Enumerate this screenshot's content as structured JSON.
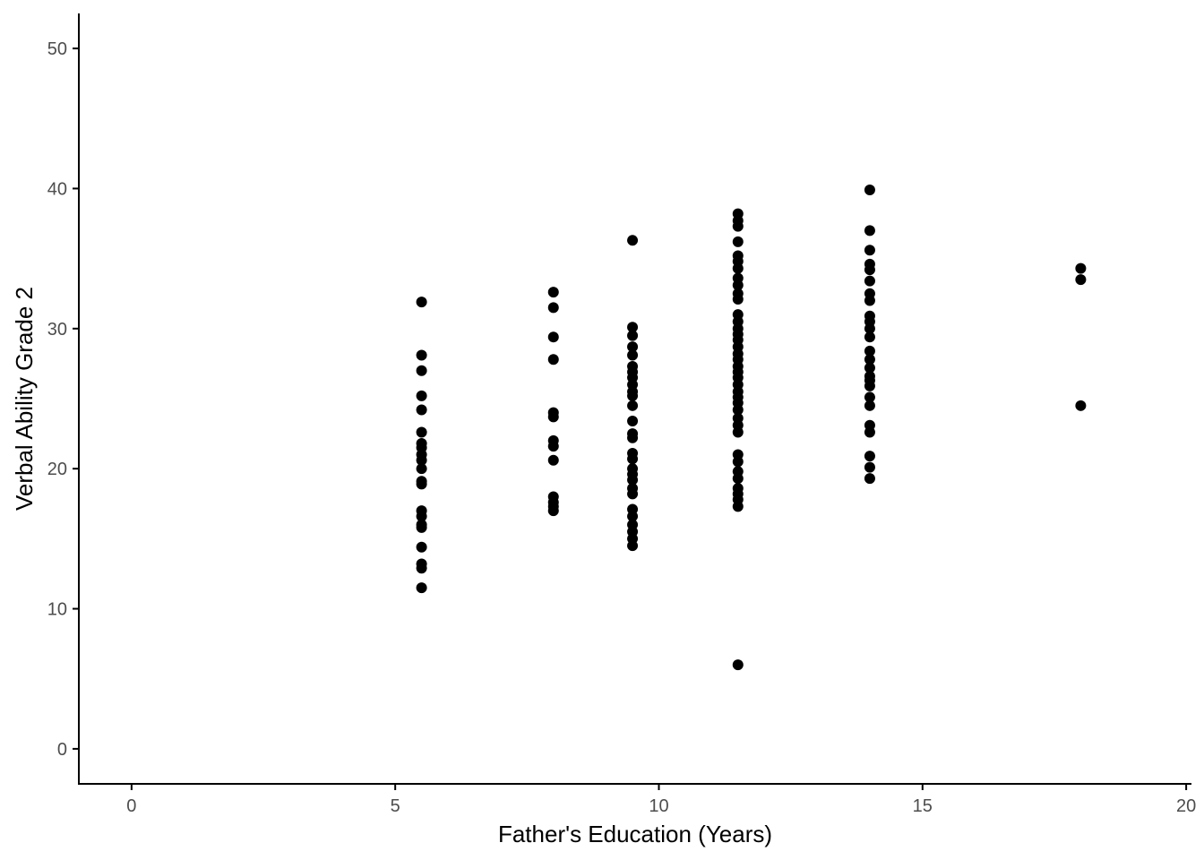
{
  "chart_data": {
    "type": "scatter",
    "xlabel": "Father's Education (Years)",
    "ylabel": "Verbal Ability Grade 2",
    "xlim": [
      -1,
      20.1
    ],
    "ylim": [
      -2.5,
      52.5
    ],
    "xticks": [
      0,
      5,
      10,
      15,
      20
    ],
    "yticks": [
      0,
      10,
      20,
      30,
      40,
      50
    ],
    "grid": false,
    "point_color": "#000000",
    "points": [
      {
        "x": 5.5,
        "y": 31.9
      },
      {
        "x": 5.5,
        "y": 28.1
      },
      {
        "x": 5.5,
        "y": 27.0
      },
      {
        "x": 5.5,
        "y": 25.2
      },
      {
        "x": 5.5,
        "y": 24.2
      },
      {
        "x": 5.5,
        "y": 22.6
      },
      {
        "x": 5.5,
        "y": 21.8
      },
      {
        "x": 5.5,
        "y": 21.5
      },
      {
        "x": 5.5,
        "y": 21.0
      },
      {
        "x": 5.5,
        "y": 20.6
      },
      {
        "x": 5.5,
        "y": 20.0
      },
      {
        "x": 5.5,
        "y": 19.1
      },
      {
        "x": 5.5,
        "y": 18.9
      },
      {
        "x": 5.5,
        "y": 17.0
      },
      {
        "x": 5.5,
        "y": 16.6
      },
      {
        "x": 5.5,
        "y": 16.0
      },
      {
        "x": 5.5,
        "y": 15.8
      },
      {
        "x": 5.5,
        "y": 14.4
      },
      {
        "x": 5.5,
        "y": 13.2
      },
      {
        "x": 5.5,
        "y": 12.9
      },
      {
        "x": 5.5,
        "y": 11.5
      },
      {
        "x": 8,
        "y": 32.6
      },
      {
        "x": 8,
        "y": 31.5
      },
      {
        "x": 8,
        "y": 29.4
      },
      {
        "x": 8,
        "y": 27.8
      },
      {
        "x": 8,
        "y": 24.0
      },
      {
        "x": 8,
        "y": 23.7
      },
      {
        "x": 8,
        "y": 22.0
      },
      {
        "x": 8,
        "y": 21.6
      },
      {
        "x": 8,
        "y": 20.6
      },
      {
        "x": 8,
        "y": 18.0
      },
      {
        "x": 8,
        "y": 17.6
      },
      {
        "x": 8,
        "y": 17.3
      },
      {
        "x": 8,
        "y": 17.0
      },
      {
        "x": 9.5,
        "y": 36.3
      },
      {
        "x": 9.5,
        "y": 30.1
      },
      {
        "x": 9.5,
        "y": 29.5
      },
      {
        "x": 9.5,
        "y": 28.7
      },
      {
        "x": 9.5,
        "y": 28.1
      },
      {
        "x": 9.5,
        "y": 27.3
      },
      {
        "x": 9.5,
        "y": 26.9
      },
      {
        "x": 9.5,
        "y": 26.5
      },
      {
        "x": 9.5,
        "y": 26.0
      },
      {
        "x": 9.5,
        "y": 25.5
      },
      {
        "x": 9.5,
        "y": 25.2
      },
      {
        "x": 9.5,
        "y": 24.5
      },
      {
        "x": 9.5,
        "y": 23.4
      },
      {
        "x": 9.5,
        "y": 22.5
      },
      {
        "x": 9.5,
        "y": 22.2
      },
      {
        "x": 9.5,
        "y": 21.1
      },
      {
        "x": 9.5,
        "y": 20.7
      },
      {
        "x": 9.5,
        "y": 20.0
      },
      {
        "x": 9.5,
        "y": 19.6
      },
      {
        "x": 9.5,
        "y": 19.2
      },
      {
        "x": 9.5,
        "y": 18.6
      },
      {
        "x": 9.5,
        "y": 18.2
      },
      {
        "x": 9.5,
        "y": 17.1
      },
      {
        "x": 9.5,
        "y": 16.6
      },
      {
        "x": 9.5,
        "y": 16.0
      },
      {
        "x": 9.5,
        "y": 15.5
      },
      {
        "x": 9.5,
        "y": 15.0
      },
      {
        "x": 9.5,
        "y": 14.5
      },
      {
        "x": 11.5,
        "y": 38.2
      },
      {
        "x": 11.5,
        "y": 37.7
      },
      {
        "x": 11.5,
        "y": 37.3
      },
      {
        "x": 11.5,
        "y": 36.2
      },
      {
        "x": 11.5,
        "y": 35.2
      },
      {
        "x": 11.5,
        "y": 34.8
      },
      {
        "x": 11.5,
        "y": 34.3
      },
      {
        "x": 11.5,
        "y": 33.6
      },
      {
        "x": 11.5,
        "y": 33.1
      },
      {
        "x": 11.5,
        "y": 32.5
      },
      {
        "x": 11.5,
        "y": 32.1
      },
      {
        "x": 11.5,
        "y": 31.0
      },
      {
        "x": 11.5,
        "y": 30.5
      },
      {
        "x": 11.5,
        "y": 30.0
      },
      {
        "x": 11.5,
        "y": 29.6
      },
      {
        "x": 11.5,
        "y": 29.2
      },
      {
        "x": 11.5,
        "y": 28.7
      },
      {
        "x": 11.5,
        "y": 28.2
      },
      {
        "x": 11.5,
        "y": 27.8
      },
      {
        "x": 11.5,
        "y": 27.3
      },
      {
        "x": 11.5,
        "y": 26.9
      },
      {
        "x": 11.5,
        "y": 26.5
      },
      {
        "x": 11.5,
        "y": 26.0
      },
      {
        "x": 11.5,
        "y": 25.5
      },
      {
        "x": 11.5,
        "y": 25.1
      },
      {
        "x": 11.5,
        "y": 24.7
      },
      {
        "x": 11.5,
        "y": 24.2
      },
      {
        "x": 11.5,
        "y": 23.6
      },
      {
        "x": 11.5,
        "y": 23.1
      },
      {
        "x": 11.5,
        "y": 22.6
      },
      {
        "x": 11.5,
        "y": 21.0
      },
      {
        "x": 11.5,
        "y": 20.5
      },
      {
        "x": 11.5,
        "y": 19.8
      },
      {
        "x": 11.5,
        "y": 19.3
      },
      {
        "x": 11.5,
        "y": 18.6
      },
      {
        "x": 11.5,
        "y": 18.2
      },
      {
        "x": 11.5,
        "y": 17.8
      },
      {
        "x": 11.5,
        "y": 17.3
      },
      {
        "x": 11.5,
        "y": 6.0
      },
      {
        "x": 14,
        "y": 39.9
      },
      {
        "x": 14,
        "y": 37.0
      },
      {
        "x": 14,
        "y": 35.6
      },
      {
        "x": 14,
        "y": 34.6
      },
      {
        "x": 14,
        "y": 34.2
      },
      {
        "x": 14,
        "y": 33.4
      },
      {
        "x": 14,
        "y": 32.5
      },
      {
        "x": 14,
        "y": 32.0
      },
      {
        "x": 14,
        "y": 30.9
      },
      {
        "x": 14,
        "y": 30.5
      },
      {
        "x": 14,
        "y": 30.0
      },
      {
        "x": 14,
        "y": 29.4
      },
      {
        "x": 14,
        "y": 28.4
      },
      {
        "x": 14,
        "y": 27.8
      },
      {
        "x": 14,
        "y": 27.2
      },
      {
        "x": 14,
        "y": 26.6
      },
      {
        "x": 14,
        "y": 26.3
      },
      {
        "x": 14,
        "y": 25.9
      },
      {
        "x": 14,
        "y": 25.1
      },
      {
        "x": 14,
        "y": 24.5
      },
      {
        "x": 14,
        "y": 23.1
      },
      {
        "x": 14,
        "y": 22.6
      },
      {
        "x": 14,
        "y": 20.9
      },
      {
        "x": 14,
        "y": 20.1
      },
      {
        "x": 14,
        "y": 19.3
      },
      {
        "x": 18,
        "y": 34.3
      },
      {
        "x": 18,
        "y": 33.5
      },
      {
        "x": 18,
        "y": 24.5
      }
    ]
  }
}
